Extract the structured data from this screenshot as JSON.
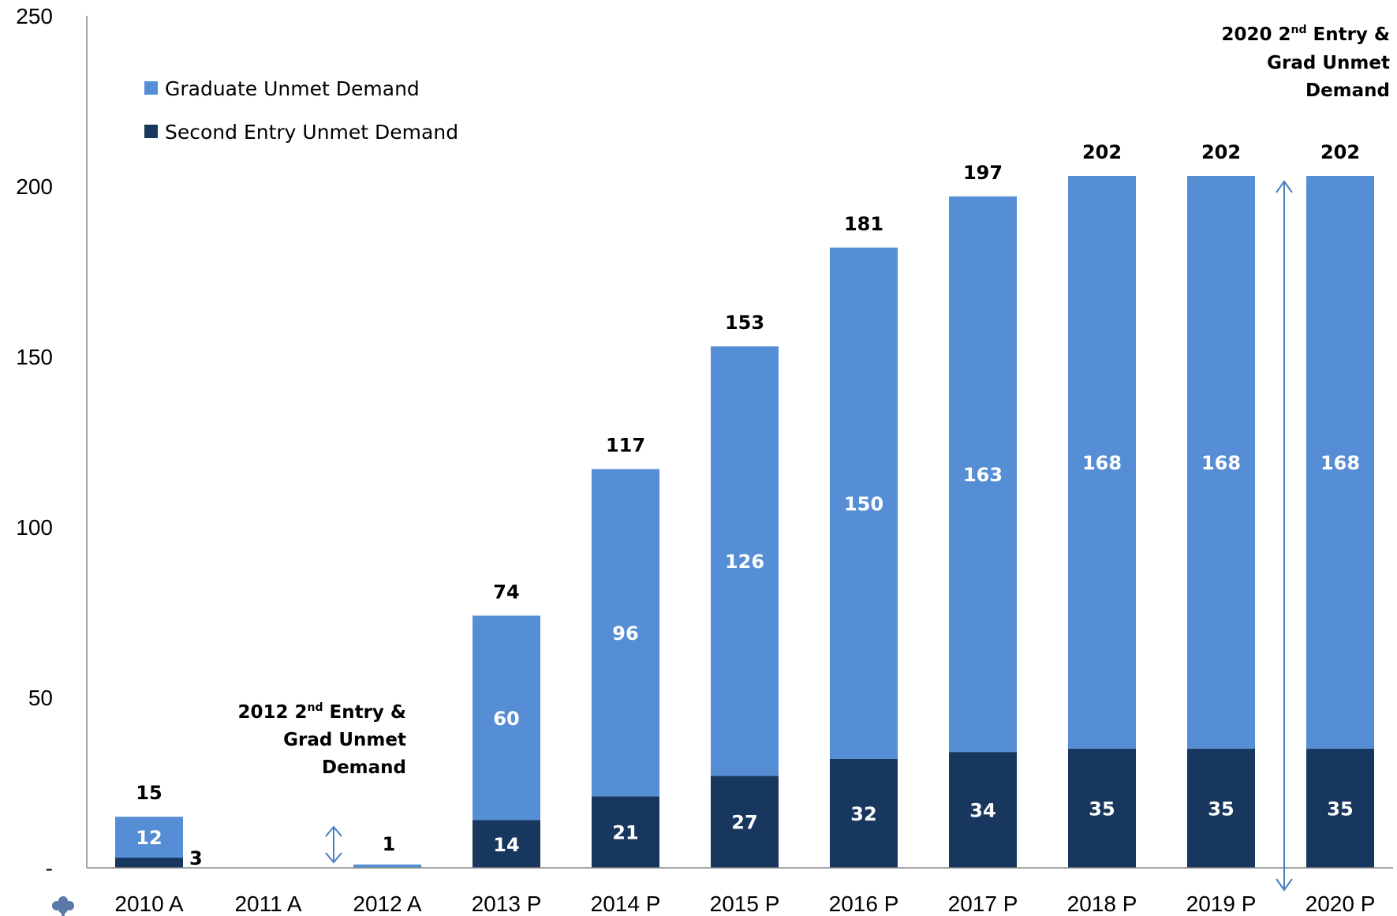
{
  "chart_data": {
    "type": "bar",
    "stacked": true,
    "categories": [
      "2010 A",
      "2011 A",
      "2012 A",
      "2013 P",
      "2014 P",
      "2015 P",
      "2016 P",
      "2017 P",
      "2018 P",
      "2019 P",
      "2020 P"
    ],
    "series": [
      {
        "name": "Second Entry Unmet Demand",
        "values": [
          3,
          0,
          0,
          14,
          21,
          27,
          32,
          34,
          35,
          35,
          35
        ],
        "color": "#17375e"
      },
      {
        "name": "Graduate Unmet Demand",
        "values": [
          12,
          0,
          1,
          60,
          96,
          126,
          150,
          163,
          168,
          168,
          168
        ],
        "color": "#558ed5"
      }
    ],
    "totals": [
      15,
      null,
      1,
      74,
      117,
      153,
      181,
      197,
      202,
      202,
      202
    ],
    "ylim": [
      0,
      250
    ],
    "yticks": [
      "-",
      "50",
      "100",
      "150",
      "200",
      "250"
    ],
    "ytick_values": [
      0,
      50,
      100,
      150,
      200,
      250
    ],
    "grid": false,
    "legend": {
      "position": "top-left",
      "items": [
        "Graduate Unmet Demand",
        "Second Entry Unmet Demand"
      ]
    },
    "annotations": {
      "note_2012": {
        "line1_pre": "2012 2",
        "line1_sup": "nd",
        "line1_post": " Entry &",
        "line2": "Grad Unmet",
        "line3": "Demand"
      },
      "note_2020": {
        "line1_pre": "2020 2",
        "line1_sup": "nd",
        "line1_post": " Entry &",
        "line2": "Grad Unmet",
        "line3": "Demand"
      }
    }
  }
}
